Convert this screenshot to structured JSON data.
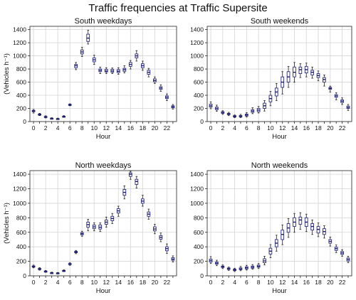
{
  "title": "Traffic frequencies at Traffic Supersite",
  "colors": {
    "box_edge": "#2a2a80",
    "box_fill": "#ffffff",
    "median": "#1a1a66",
    "whisker": "#222222",
    "grid": "#d4d4d4"
  },
  "chart_data": [
    {
      "type": "box",
      "title": "South weekdays",
      "xlabel": "Hour",
      "ylabel": "(Vehicles h⁻¹)",
      "ylim": [
        0,
        1450
      ],
      "yticks": [
        0,
        200,
        400,
        600,
        800,
        1000,
        1200,
        1400
      ],
      "xticks": [
        0,
        2,
        4,
        6,
        8,
        10,
        12,
        14,
        16,
        18,
        20,
        22
      ],
      "grid": true,
      "boxes": [
        {
          "hour": 0,
          "whislo": 130,
          "q1": 150,
          "med": 160,
          "q3": 170,
          "whishi": 185
        },
        {
          "hour": 1,
          "whislo": 90,
          "q1": 100,
          "med": 108,
          "q3": 115,
          "whishi": 125
        },
        {
          "hour": 2,
          "whislo": 55,
          "q1": 65,
          "med": 72,
          "q3": 78,
          "whishi": 88
        },
        {
          "hour": 3,
          "whislo": 35,
          "q1": 42,
          "med": 47,
          "q3": 52,
          "whishi": 58
        },
        {
          "hour": 4,
          "whislo": 32,
          "q1": 38,
          "med": 42,
          "q3": 46,
          "whishi": 52
        },
        {
          "hour": 5,
          "whislo": 65,
          "q1": 72,
          "med": 77,
          "q3": 82,
          "whishi": 90
        },
        {
          "hour": 6,
          "whislo": 240,
          "q1": 248,
          "med": 255,
          "q3": 262,
          "whishi": 270
        },
        {
          "hour": 7,
          "whislo": 790,
          "q1": 820,
          "med": 850,
          "q3": 870,
          "whishi": 900
        },
        {
          "hour": 8,
          "whislo": 990,
          "q1": 1030,
          "med": 1060,
          "q3": 1090,
          "whishi": 1130
        },
        {
          "hour": 9,
          "whislo": 1180,
          "q1": 1220,
          "med": 1270,
          "q3": 1330,
          "whishi": 1390
        },
        {
          "hour": 10,
          "whislo": 870,
          "q1": 910,
          "med": 940,
          "q3": 970,
          "whishi": 1010
        },
        {
          "hour": 11,
          "whislo": 730,
          "q1": 760,
          "med": 780,
          "q3": 800,
          "whishi": 830
        },
        {
          "hour": 12,
          "whislo": 730,
          "q1": 755,
          "med": 770,
          "q3": 795,
          "whishi": 820
        },
        {
          "hour": 13,
          "whislo": 730,
          "q1": 750,
          "med": 770,
          "q3": 795,
          "whishi": 815
        },
        {
          "hour": 14,
          "whislo": 720,
          "q1": 745,
          "med": 765,
          "q3": 790,
          "whishi": 820
        },
        {
          "hour": 15,
          "whislo": 740,
          "q1": 765,
          "med": 790,
          "q3": 810,
          "whishi": 850
        },
        {
          "hour": 16,
          "whislo": 800,
          "q1": 840,
          "med": 870,
          "q3": 900,
          "whishi": 930
        },
        {
          "hour": 17,
          "whislo": 920,
          "q1": 970,
          "med": 1000,
          "q3": 1030,
          "whishi": 1080
        },
        {
          "hour": 18,
          "whislo": 780,
          "q1": 820,
          "med": 850,
          "q3": 880,
          "whishi": 920
        },
        {
          "hour": 19,
          "whislo": 680,
          "q1": 720,
          "med": 750,
          "q3": 780,
          "whishi": 810
        },
        {
          "hour": 20,
          "whislo": 580,
          "q1": 605,
          "med": 625,
          "q3": 650,
          "whishi": 680
        },
        {
          "hour": 21,
          "whislo": 460,
          "q1": 490,
          "med": 510,
          "q3": 530,
          "whishi": 560
        },
        {
          "hour": 22,
          "whislo": 320,
          "q1": 350,
          "med": 370,
          "q3": 390,
          "whishi": 420
        },
        {
          "hour": 23,
          "whislo": 190,
          "q1": 210,
          "med": 225,
          "q3": 240,
          "whishi": 260
        }
      ]
    },
    {
      "type": "box",
      "title": "South weekends",
      "xlabel": "Hour",
      "ylabel": "",
      "ylim": [
        0,
        1450
      ],
      "yticks": [
        0,
        200,
        400,
        600,
        800,
        1000,
        1200,
        1400
      ],
      "xticks": [
        0,
        2,
        4,
        6,
        8,
        10,
        12,
        14,
        16,
        18,
        20,
        22
      ],
      "grid": true,
      "boxes": [
        {
          "hour": 0,
          "whislo": 195,
          "q1": 220,
          "med": 240,
          "q3": 265,
          "whishi": 300
        },
        {
          "hour": 1,
          "whislo": 155,
          "q1": 180,
          "med": 200,
          "q3": 220,
          "whishi": 250
        },
        {
          "hour": 2,
          "whislo": 110,
          "q1": 125,
          "med": 140,
          "q3": 150,
          "whishi": 165
        },
        {
          "hour": 3,
          "whislo": 90,
          "q1": 105,
          "med": 115,
          "q3": 125,
          "whishi": 140
        },
        {
          "hour": 4,
          "whislo": 60,
          "q1": 70,
          "med": 80,
          "q3": 90,
          "whishi": 100
        },
        {
          "hour": 5,
          "whislo": 60,
          "q1": 72,
          "med": 82,
          "q3": 92,
          "whishi": 110
        },
        {
          "hour": 6,
          "whislo": 70,
          "q1": 85,
          "med": 100,
          "q3": 115,
          "whishi": 135
        },
        {
          "hour": 7,
          "whislo": 120,
          "q1": 140,
          "med": 160,
          "q3": 180,
          "whishi": 210
        },
        {
          "hour": 8,
          "whislo": 130,
          "q1": 150,
          "med": 175,
          "q3": 200,
          "whishi": 230
        },
        {
          "hour": 9,
          "whislo": 160,
          "q1": 200,
          "med": 240,
          "q3": 280,
          "whishi": 320
        },
        {
          "hour": 10,
          "whislo": 240,
          "q1": 300,
          "med": 350,
          "q3": 400,
          "whishi": 460
        },
        {
          "hour": 11,
          "whislo": 320,
          "q1": 390,
          "med": 450,
          "q3": 510,
          "whishi": 580
        },
        {
          "hour": 12,
          "whislo": 420,
          "q1": 520,
          "med": 600,
          "q3": 680,
          "whishi": 760
        },
        {
          "hour": 13,
          "whislo": 520,
          "q1": 600,
          "med": 680,
          "q3": 760,
          "whishi": 840
        },
        {
          "hour": 14,
          "whislo": 600,
          "q1": 680,
          "med": 750,
          "q3": 830,
          "whishi": 900
        },
        {
          "hour": 15,
          "whislo": 670,
          "q1": 730,
          "med": 790,
          "q3": 830,
          "whishi": 880
        },
        {
          "hour": 16,
          "whislo": 680,
          "q1": 740,
          "med": 790,
          "q3": 840,
          "whishi": 890
        },
        {
          "hour": 17,
          "whislo": 660,
          "q1": 710,
          "med": 750,
          "q3": 780,
          "whishi": 830
        },
        {
          "hour": 18,
          "whislo": 620,
          "q1": 670,
          "med": 700,
          "q3": 730,
          "whishi": 770
        },
        {
          "hour": 19,
          "whislo": 540,
          "q1": 600,
          "med": 640,
          "q3": 670,
          "whishi": 710
        },
        {
          "hour": 20,
          "whislo": 450,
          "q1": 490,
          "med": 505,
          "q3": 520,
          "whishi": 540
        },
        {
          "hour": 21,
          "whislo": 330,
          "q1": 370,
          "med": 390,
          "q3": 410,
          "whishi": 440
        },
        {
          "hour": 22,
          "whislo": 260,
          "q1": 290,
          "med": 310,
          "q3": 330,
          "whishi": 360
        },
        {
          "hour": 23,
          "whislo": 170,
          "q1": 200,
          "med": 215,
          "q3": 235,
          "whishi": 260
        }
      ]
    },
    {
      "type": "box",
      "title": "North weekdays",
      "xlabel": "Hour",
      "ylabel": "(Vehicles h⁻¹)",
      "ylim": [
        0,
        1450
      ],
      "yticks": [
        0,
        200,
        400,
        600,
        800,
        1000,
        1200,
        1400
      ],
      "xticks": [
        0,
        2,
        4,
        6,
        8,
        10,
        12,
        14,
        16,
        18,
        20,
        22
      ],
      "grid": true,
      "boxes": [
        {
          "hour": 0,
          "whislo": 110,
          "q1": 120,
          "med": 128,
          "q3": 136,
          "whishi": 148
        },
        {
          "hour": 1,
          "whislo": 78,
          "q1": 88,
          "med": 95,
          "q3": 102,
          "whishi": 112
        },
        {
          "hour": 2,
          "whislo": 48,
          "q1": 55,
          "med": 60,
          "q3": 66,
          "whishi": 74
        },
        {
          "hour": 3,
          "whislo": 30,
          "q1": 35,
          "med": 40,
          "q3": 44,
          "whishi": 50
        },
        {
          "hour": 4,
          "whislo": 28,
          "q1": 33,
          "med": 37,
          "q3": 41,
          "whishi": 46
        },
        {
          "hour": 5,
          "whislo": 58,
          "q1": 65,
          "med": 70,
          "q3": 75,
          "whishi": 82
        },
        {
          "hour": 6,
          "whislo": 145,
          "q1": 155,
          "med": 162,
          "q3": 170,
          "whishi": 180
        },
        {
          "hour": 7,
          "whislo": 305,
          "q1": 318,
          "med": 328,
          "q3": 338,
          "whishi": 350
        },
        {
          "hour": 8,
          "whislo": 545,
          "q1": 565,
          "med": 580,
          "q3": 595,
          "whishi": 615
        },
        {
          "hour": 9,
          "whislo": 620,
          "q1": 670,
          "med": 705,
          "q3": 740,
          "whishi": 780
        },
        {
          "hour": 10,
          "whislo": 620,
          "q1": 650,
          "med": 675,
          "q3": 700,
          "whishi": 730
        },
        {
          "hour": 11,
          "whislo": 610,
          "q1": 645,
          "med": 670,
          "q3": 700,
          "whishi": 730
        },
        {
          "hour": 12,
          "whislo": 670,
          "q1": 710,
          "med": 740,
          "q3": 770,
          "whishi": 810
        },
        {
          "hour": 13,
          "whislo": 720,
          "q1": 760,
          "med": 790,
          "q3": 820,
          "whishi": 860
        },
        {
          "hour": 14,
          "whislo": 820,
          "q1": 865,
          "med": 895,
          "q3": 925,
          "whishi": 960
        },
        {
          "hour": 15,
          "whislo": 1060,
          "q1": 1110,
          "med": 1150,
          "q3": 1190,
          "whishi": 1240
        },
        {
          "hour": 16,
          "whislo": 1330,
          "q1": 1370,
          "med": 1400,
          "q3": 1420,
          "whishi": 1440
        },
        {
          "hour": 17,
          "whislo": 1210,
          "q1": 1260,
          "med": 1300,
          "q3": 1330,
          "whishi": 1370
        },
        {
          "hour": 18,
          "whislo": 960,
          "q1": 1000,
          "med": 1030,
          "q3": 1060,
          "whishi": 1110
        },
        {
          "hour": 19,
          "whislo": 780,
          "q1": 820,
          "med": 850,
          "q3": 880,
          "whishi": 920
        },
        {
          "hour": 20,
          "whislo": 580,
          "q1": 620,
          "med": 645,
          "q3": 675,
          "whishi": 710
        },
        {
          "hour": 21,
          "whislo": 470,
          "q1": 505,
          "med": 530,
          "q3": 555,
          "whishi": 590
        },
        {
          "hour": 22,
          "whislo": 310,
          "q1": 345,
          "med": 375,
          "q3": 400,
          "whishi": 440
        },
        {
          "hour": 23,
          "whislo": 190,
          "q1": 215,
          "med": 230,
          "q3": 250,
          "whishi": 275
        }
      ]
    },
    {
      "type": "box",
      "title": "North weekends",
      "xlabel": "Hour",
      "ylabel": "",
      "ylim": [
        0,
        1450
      ],
      "yticks": [
        0,
        200,
        400,
        600,
        800,
        1000,
        1200,
        1400
      ],
      "xticks": [
        0,
        2,
        4,
        6,
        8,
        10,
        12,
        14,
        16,
        18,
        20,
        22
      ],
      "grid": true,
      "boxes": [
        {
          "hour": 0,
          "whislo": 170,
          "q1": 190,
          "med": 210,
          "q3": 230,
          "whishi": 265
        },
        {
          "hour": 1,
          "whislo": 140,
          "q1": 160,
          "med": 175,
          "q3": 190,
          "whishi": 215
        },
        {
          "hour": 2,
          "whislo": 100,
          "q1": 115,
          "med": 125,
          "q3": 135,
          "whishi": 150
        },
        {
          "hour": 3,
          "whislo": 75,
          "q1": 88,
          "med": 98,
          "q3": 108,
          "whishi": 120
        },
        {
          "hour": 4,
          "whislo": 60,
          "q1": 72,
          "med": 82,
          "q3": 92,
          "whishi": 105
        },
        {
          "hour": 5,
          "whislo": 70,
          "q1": 85,
          "med": 95,
          "q3": 110,
          "whishi": 130
        },
        {
          "hour": 6,
          "whislo": 80,
          "q1": 95,
          "med": 110,
          "q3": 125,
          "whishi": 145
        },
        {
          "hour": 7,
          "whislo": 90,
          "q1": 105,
          "med": 120,
          "q3": 135,
          "whishi": 155
        },
        {
          "hour": 8,
          "whislo": 100,
          "q1": 118,
          "med": 132,
          "q3": 148,
          "whishi": 170
        },
        {
          "hour": 9,
          "whislo": 150,
          "q1": 180,
          "med": 205,
          "q3": 235,
          "whishi": 270
        },
        {
          "hour": 10,
          "whislo": 250,
          "q1": 300,
          "med": 340,
          "q3": 380,
          "whishi": 430
        },
        {
          "hour": 11,
          "whislo": 340,
          "q1": 400,
          "med": 450,
          "q3": 500,
          "whishi": 560
        },
        {
          "hour": 12,
          "whislo": 430,
          "q1": 500,
          "med": 570,
          "q3": 630,
          "whishi": 700
        },
        {
          "hour": 13,
          "whislo": 530,
          "q1": 600,
          "med": 660,
          "q3": 720,
          "whishi": 790
        },
        {
          "hour": 14,
          "whislo": 600,
          "q1": 680,
          "med": 740,
          "q3": 800,
          "whishi": 860
        },
        {
          "hour": 15,
          "whislo": 640,
          "q1": 710,
          "med": 770,
          "q3": 810,
          "whishi": 870
        },
        {
          "hour": 16,
          "whislo": 610,
          "q1": 680,
          "med": 740,
          "q3": 800,
          "whishi": 850
        },
        {
          "hour": 17,
          "whislo": 570,
          "q1": 630,
          "med": 680,
          "q3": 720,
          "whishi": 770
        },
        {
          "hour": 18,
          "whislo": 540,
          "q1": 590,
          "med": 640,
          "q3": 680,
          "whishi": 730
        },
        {
          "hour": 19,
          "whislo": 520,
          "q1": 570,
          "med": 610,
          "q3": 650,
          "whishi": 690
        },
        {
          "hour": 20,
          "whislo": 410,
          "q1": 450,
          "med": 475,
          "q3": 500,
          "whishi": 535
        },
        {
          "hour": 21,
          "whislo": 320,
          "q1": 350,
          "med": 375,
          "q3": 395,
          "whishi": 425
        },
        {
          "hour": 22,
          "whislo": 270,
          "q1": 295,
          "med": 315,
          "q3": 335,
          "whishi": 360
        },
        {
          "hour": 23,
          "whislo": 180,
          "q1": 205,
          "med": 225,
          "q3": 245,
          "whishi": 270
        }
      ]
    }
  ]
}
